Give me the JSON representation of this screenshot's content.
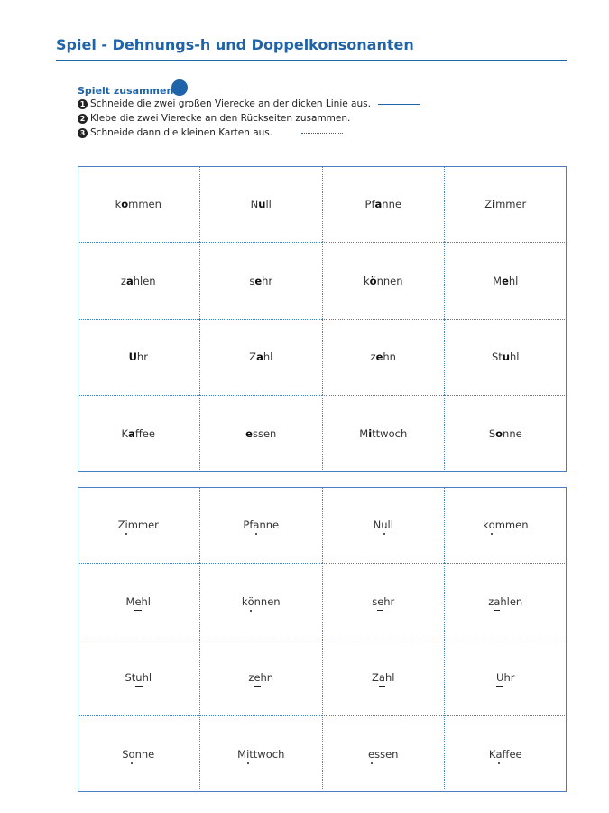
{
  "header": {
    "title": "Spiel - Dehnungs-h und Doppelkonsonanten"
  },
  "instructions": {
    "heading": "Spielt zusammen.",
    "steps": [
      {
        "number": "1",
        "text": "Schneide die zwei großen Vierecke an der dicken Linie aus."
      },
      {
        "number": "2",
        "text": "Klebe die zwei Vierecke an den Rückseiten zusammen."
      },
      {
        "number": "3",
        "text": "Schneide dann die kleinen Karten aus."
      }
    ]
  },
  "front": {
    "cards": [
      [
        {
          "pre": "k",
          "vowel": "o",
          "post": "mmen"
        },
        {
          "pre": "N",
          "vowel": "u",
          "post": "ll"
        },
        {
          "pre": "Pf",
          "vowel": "a",
          "post": "nne"
        },
        {
          "pre": "Z",
          "vowel": "i",
          "post": "mmer"
        }
      ],
      [
        {
          "pre": "z",
          "vowel": "a",
          "post": "hlen"
        },
        {
          "pre": "s",
          "vowel": "e",
          "post": "hr"
        },
        {
          "pre": "k",
          "vowel": "ö",
          "post": "nnen"
        },
        {
          "pre": "M",
          "vowel": "e",
          "post": "hl"
        }
      ],
      [
        {
          "vowel": "U",
          "post": "hr"
        },
        {
          "pre": "Z",
          "vowel": "a",
          "post": "hl"
        },
        {
          "pre": "z",
          "vowel": "e",
          "post": "hn"
        },
        {
          "pre": "St",
          "vowel": "u",
          "post": "hl"
        }
      ],
      [
        {
          "pre": "K",
          "vowel": "a",
          "post": "ffee"
        },
        {
          "vowel": "e",
          "post": "ssen"
        },
        {
          "pre": "M",
          "vowel": "i",
          "post": "ttwoch"
        },
        {
          "pre": "S",
          "vowel": "o",
          "post": "nne"
        }
      ]
    ]
  },
  "back": {
    "cards": [
      [
        {
          "pre": "Z",
          "vowel": "i",
          "post": "mmer"
        },
        {
          "pre": "Pf",
          "vowel": "a",
          "post": "nne"
        },
        {
          "pre": "N",
          "vowel": "u",
          "post": "ll"
        },
        {
          "pre": "k",
          "vowel": "o",
          "post": "mmen"
        }
      ],
      [
        {
          "pre": "M",
          "vowel": "e",
          "post": "hl"
        },
        {
          "pre": "k",
          "vowel": "ö",
          "post": "nnen"
        },
        {
          "pre": "s",
          "vowel": "e",
          "post": "hr"
        },
        {
          "pre": "z",
          "vowel": "a",
          "post": "hlen"
        }
      ],
      [
        {
          "pre": "St",
          "vowel": "u",
          "post": "hl"
        },
        {
          "pre": "z",
          "vowel": "e",
          "post": "hn"
        },
        {
          "pre": "Z",
          "vowel": "a",
          "post": "hl"
        },
        {
          "vowel": "U",
          "post": "hr"
        }
      ],
      [
        {
          "pre": "S",
          "vowel": "o",
          "post": "nne"
        },
        {
          "pre": "M",
          "vowel": "i",
          "post": "ttwoch"
        },
        {
          "vowel": "e",
          "post": "ssen"
        },
        {
          "pre": "K",
          "vowel": "a",
          "post": "ffee"
        }
      ]
    ]
  }
}
